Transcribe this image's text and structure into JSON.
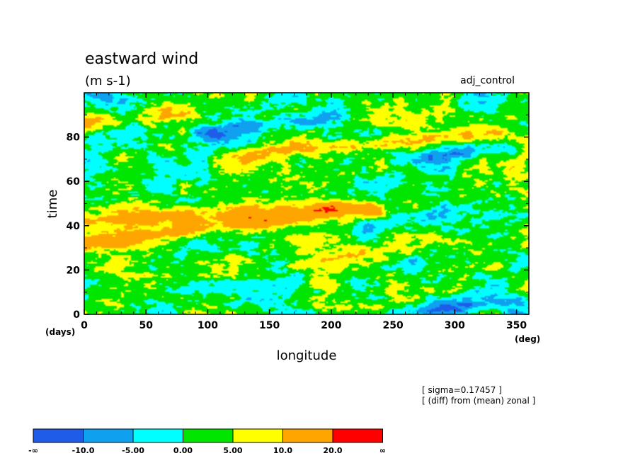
{
  "chart_data": {
    "type": "heatmap",
    "title": "eastward wind",
    "units": "(m s-1)",
    "experiment": "adj_control",
    "xlabel": "longitude",
    "ylabel": "time",
    "xunit": "(deg)",
    "yunit": "(days)",
    "xlim": [
      0,
      360
    ],
    "ylim": [
      0,
      100
    ],
    "xticks": [
      0,
      50,
      100,
      150,
      200,
      250,
      300,
      350
    ],
    "yticks": [
      0,
      20,
      40,
      60,
      80
    ],
    "xtick_labels": [
      "0",
      "50",
      "100",
      "150",
      "200",
      "250",
      "300",
      "350"
    ],
    "ytick_labels": [
      "0",
      "20",
      "40",
      "60",
      "80"
    ],
    "notes": [
      "[ sigma=0.17457 ]",
      "[ (diff) from (mean) zonal ]"
    ],
    "colorbar": {
      "labels": [
        "-∞",
        "-10.0",
        "-5.00",
        "0.00",
        "5.00",
        "10.0",
        "20.0",
        "∞"
      ],
      "bounds": [
        null,
        -10,
        -5,
        0,
        5,
        10,
        20,
        null
      ],
      "colors": [
        "#1f5ce8",
        "#0fa0f0",
        "#00ffff",
        "#00e600",
        "#ffff00",
        "#ffa500",
        "#ff0000"
      ]
    },
    "features": [
      {
        "description": "eastward band (positive anomaly)",
        "lon_start": 0,
        "time_start": 32,
        "lon_end": 230,
        "time_end": 48,
        "value": 12
      },
      {
        "description": "eastward band (positive anomaly)",
        "lon_start": 0,
        "time_start": 42,
        "lon_end": 200,
        "time_end": 48,
        "value": 10
      },
      {
        "description": "eastward band (positive anomaly)",
        "lon_start": 120,
        "time_start": 72,
        "lon_end": 330,
        "time_end": 82,
        "value": 9
      },
      {
        "description": "eastward band (positive anomaly)",
        "lon_start": 0,
        "time_start": 86,
        "lon_end": 80,
        "time_end": 92,
        "value": 8
      },
      {
        "description": "eastward band (positive anomaly)",
        "lon_start": 170,
        "time_start": 22,
        "lon_end": 260,
        "time_end": 30,
        "value": 7
      },
      {
        "description": "westward patch (negative anomaly)",
        "lon_start": 100,
        "time_start": 82,
        "lon_end": 200,
        "time_end": 90,
        "value": -9
      },
      {
        "description": "westward patch (negative anomaly)",
        "lon_start": 270,
        "time_start": 70,
        "lon_end": 340,
        "time_end": 76,
        "value": -8
      },
      {
        "description": "westward patch (negative anomaly)",
        "lon_start": 230,
        "time_start": 38,
        "lon_end": 280,
        "time_end": 45,
        "value": -7
      },
      {
        "description": "westward patch (negative anomaly)",
        "lon_start": 250,
        "time_start": 0,
        "lon_end": 350,
        "time_end": 6,
        "value": -7
      }
    ]
  }
}
